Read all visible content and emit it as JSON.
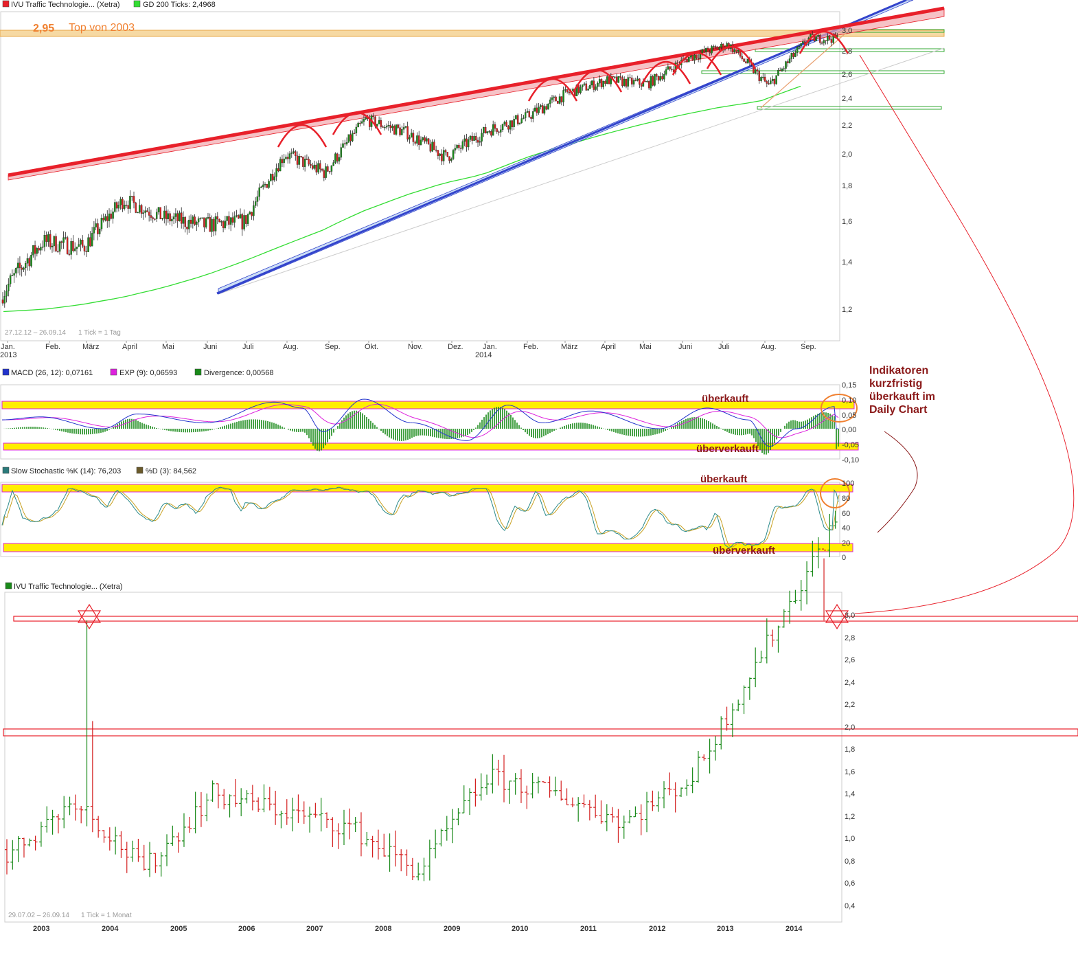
{
  "colors": {
    "bullish": "#1a8a1a",
    "bearish": "#d42020",
    "gd200": "#33dd33",
    "resistance": "#e8202a",
    "support": "#3344cc",
    "highlight_band": "#ffee00",
    "macd": "#2233cc",
    "exp": "#dd22dd",
    "stoch_k": "#2a8a8a",
    "stoch_d": "#8a6a2a",
    "circle": "#f08030",
    "annotation": "#8b1a1a"
  },
  "top_chart": {
    "legend": [
      {
        "text": "IVU Traffic Technologie... (Xetra)",
        "color": "#e8202a"
      },
      {
        "text": "GD 200 Ticks: 2,4968",
        "color": "#33dd33"
      }
    ],
    "top_value": "2,95",
    "top_label": "Top von 2003",
    "range_text": "27.12.12 – 26.09.14",
    "tick_text": "1 Tick = 1 Tag",
    "y_ticks": [
      "3,0",
      "2,8",
      "2,6",
      "2,4",
      "2,2",
      "2,0",
      "1,8",
      "1,6",
      "1,4",
      "1,2"
    ],
    "x_ticks": [
      "Jan.",
      "Feb.",
      "März",
      "April",
      "Mai",
      "Juni",
      "Juli",
      "Aug.",
      "Sep.",
      "Okt.",
      "Nov.",
      "Dez.",
      "Jan.",
      "Feb.",
      "März",
      "April",
      "Mai",
      "Juni",
      "Juli",
      "Aug.",
      "Sep."
    ],
    "x_years": [
      "2013",
      "2014"
    ]
  },
  "chart_data": [
    {
      "type": "line",
      "title": "IVU Traffic Technologie... (Xetra)",
      "period": "27.12.12 – 26.09.14",
      "interval": "1 Tick = 1 Tag",
      "x": [
        "Jan. 2013",
        "Feb.",
        "März",
        "April",
        "Mai",
        "Juni",
        "Juli",
        "Aug.",
        "Sep.",
        "Okt.",
        "Nov.",
        "Dez.",
        "Jan. 2014",
        "Feb.",
        "März",
        "April",
        "Mai",
        "Juni",
        "Juli",
        "Aug.",
        "Sep."
      ],
      "series": [
        {
          "name": "IVU Traffic Technologie... (Xetra)",
          "values": [
            1.27,
            1.5,
            1.47,
            1.72,
            1.62,
            1.58,
            1.6,
            2.0,
            1.88,
            2.24,
            2.15,
            1.98,
            2.16,
            2.26,
            2.44,
            2.55,
            2.52,
            2.74,
            2.86,
            2.5,
            2.92
          ]
        },
        {
          "name": "GD 200 Ticks: 2,4968",
          "values": [
            1.19,
            1.2,
            1.22,
            1.25,
            1.29,
            1.34,
            1.4,
            1.48,
            1.56,
            1.66,
            1.75,
            1.82,
            1.87,
            1.97,
            2.05,
            2.13,
            2.2,
            2.27,
            2.33,
            2.38,
            2.5
          ]
        }
      ],
      "ylim": [
        1.2,
        3.0
      ],
      "y_ticks": [
        "1,2",
        "1,4",
        "1,6",
        "1,8",
        "2,0",
        "2,2",
        "2,4",
        "2,6",
        "2,8",
        "3,0"
      ],
      "annotations": [
        "2,95",
        "Top von 2003"
      ]
    },
    {
      "type": "line",
      "title": "MACD",
      "legend": [
        "MACD (26, 12): 0,07161",
        "EXP (9): 0,06593",
        "Divergence: 0,00568"
      ],
      "ylim": [
        -0.1,
        0.15
      ],
      "y_ticks": [
        "0,15",
        "0,10",
        "0,05",
        "0,00",
        "-0,05",
        "-0,10"
      ],
      "bands": [
        {
          "label": "überkauft"
        },
        {
          "label": "überverkauft"
        }
      ]
    },
    {
      "type": "line",
      "title": "Slow Stochastic",
      "legend": [
        "Slow Stochastic %K (14): 76,203",
        "%D (3): 84,562"
      ],
      "ylim": [
        0,
        100
      ],
      "y_ticks": [
        "100",
        "80",
        "60",
        "40",
        "20",
        "0"
      ],
      "bands": [
        {
          "label": "überkauft"
        },
        {
          "label": "überverkauft"
        }
      ]
    },
    {
      "type": "bar",
      "title": "IVU Traffic Technologie... (Xetra)",
      "period": "29.07.02 – 26.09.14",
      "interval": "1 Tick = 1 Monat",
      "categories": [
        "2003",
        "2004",
        "2005",
        "2006",
        "2007",
        "2008",
        "2009",
        "2010",
        "2011",
        "2012",
        "2013",
        "2014"
      ],
      "values": [
        0.85,
        1.35,
        0.72,
        1.4,
        1.25,
        1.1,
        0.7,
        1.55,
        1.4,
        1.15,
        1.55,
        2.65
      ],
      "ylim": [
        0.4,
        3.0
      ],
      "y_ticks": [
        "0,4",
        "0,6",
        "0,8",
        "1,0",
        "1,2",
        "1,4",
        "1,6",
        "1,8",
        "2,0",
        "2,2",
        "2,4",
        "2,6",
        "2,8",
        "3,0"
      ]
    }
  ],
  "macd_panel": {
    "legend": [
      {
        "text": "MACD (26, 12): 0,07161",
        "color": "#2233cc"
      },
      {
        "text": "EXP (9): 0,06593",
        "color": "#dd22dd"
      },
      {
        "text": "Divergence: 0,00568",
        "color": "#1a8a1a"
      }
    ],
    "y_ticks": [
      "0,15",
      "0,10",
      "0,05",
      "0,00",
      "-0,05",
      "-0,10"
    ],
    "overbought": "überkauft",
    "oversold": "überverkauft"
  },
  "stoch_panel": {
    "legend": [
      {
        "text": "Slow Stochastic %K (14): 76,203",
        "color": "#2a7a7a"
      },
      {
        "text": "%D (3): 84,562",
        "color": "#6a5a2a"
      }
    ],
    "y_ticks": [
      "100",
      "80",
      "60",
      "40",
      "20",
      "0"
    ],
    "overbought": "überkauft",
    "oversold": "überverkauft"
  },
  "side_note": [
    "Indikatoren",
    "kurzfristig",
    "überkauft im",
    "Daily Chart"
  ],
  "bottom_chart": {
    "legend": [
      {
        "text": "IVU Traffic Technologie... (Xetra)",
        "color": "#1a8a1a"
      }
    ],
    "range_text": "29.07.02 – 26.09.14",
    "tick_text": "1 Tick = 1 Monat",
    "y_ticks": [
      "3,0",
      "2,8",
      "2,6",
      "2,4",
      "2,2",
      "2,0",
      "1,8",
      "1,6",
      "1,4",
      "1,2",
      "1,0",
      "0,8",
      "0,6",
      "0,4"
    ],
    "x_ticks": [
      "2003",
      "2004",
      "2005",
      "2006",
      "2007",
      "2008",
      "2009",
      "2010",
      "2011",
      "2012",
      "2013",
      "2014"
    ]
  }
}
